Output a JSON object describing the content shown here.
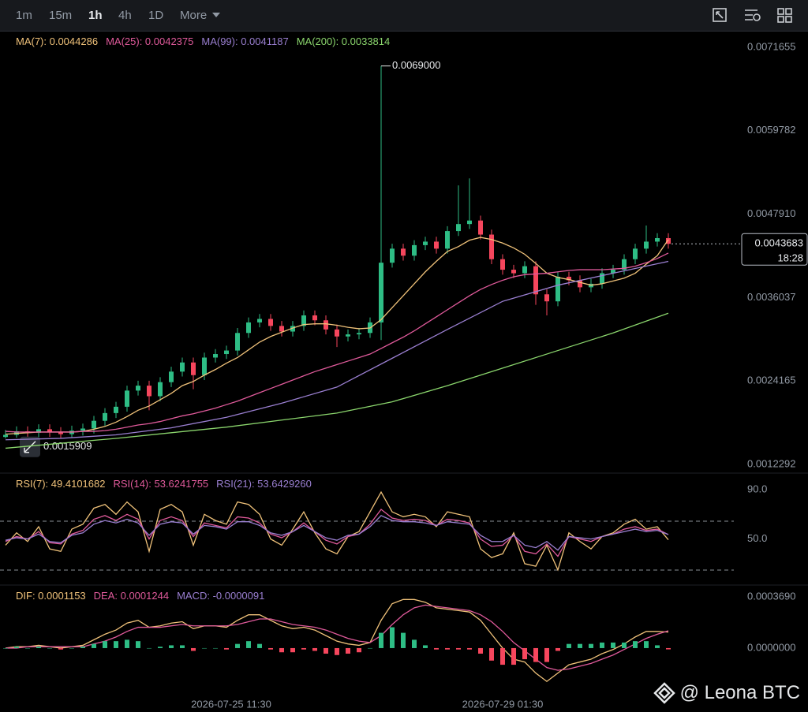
{
  "toolbar": [
    "1m",
    "15m",
    "1h",
    "4h",
    "1D",
    "More"
  ],
  "watermark": "@ Leona BTC",
  "time_labels": [
    "2026-07-25 11:30",
    "2026-07-29 01:30"
  ],
  "chart_data": [
    {
      "type": "candlestick",
      "up_color": "#2ebd85",
      "down_color": "#f6465d",
      "open": [
        0.00162,
        0.00165,
        0.0017,
        0.00168,
        0.00173,
        0.00169,
        0.00166,
        0.00171,
        0.00174,
        0.00185,
        0.00196,
        0.00205,
        0.00228,
        0.00235,
        0.0022,
        0.0024,
        0.00255,
        0.00268,
        0.0025,
        0.00275,
        0.0028,
        0.00285,
        0.0031,
        0.00325,
        0.0033,
        0.0032,
        0.00312,
        0.0032,
        0.00335,
        0.00328,
        0.00315,
        0.00305,
        0.00308,
        0.0031,
        0.00325,
        0.0041,
        0.0043,
        0.0042,
        0.00435,
        0.0044,
        0.0043,
        0.00455,
        0.00465,
        0.0047,
        0.0045,
        0.00415,
        0.004,
        0.00395,
        0.00405,
        0.00365,
        0.00355,
        0.0039,
        0.00385,
        0.00375,
        0.0038,
        0.00395,
        0.004,
        0.00415,
        0.0043,
        0.0044,
        0.00445
      ],
      "high": [
        0.00172,
        0.00177,
        0.00177,
        0.0018,
        0.0018,
        0.00176,
        0.00178,
        0.00181,
        0.00192,
        0.00203,
        0.00212,
        0.00235,
        0.00242,
        0.00242,
        0.00247,
        0.00262,
        0.00275,
        0.00275,
        0.00282,
        0.00287,
        0.00292,
        0.00317,
        0.00332,
        0.00337,
        0.00337,
        0.00327,
        0.00327,
        0.00342,
        0.00342,
        0.00335,
        0.00322,
        0.00315,
        0.00317,
        0.00332,
        0.0069,
        0.00437,
        0.00437,
        0.00442,
        0.00447,
        0.00447,
        0.00462,
        0.0052,
        0.0053,
        0.00477,
        0.00457,
        0.00422,
        0.00407,
        0.00412,
        0.00412,
        0.00372,
        0.00397,
        0.00397,
        0.00392,
        0.00387,
        0.00402,
        0.00407,
        0.00422,
        0.00437,
        0.00463,
        0.00452,
        0.00452
      ],
      "low": [
        0.0016,
        0.00161,
        0.0015909,
        0.00161,
        0.00162,
        0.0016,
        0.00161,
        0.00164,
        0.00167,
        0.00178,
        0.00189,
        0.00198,
        0.00221,
        0.002,
        0.00213,
        0.00233,
        0.00248,
        0.0023,
        0.00243,
        0.00268,
        0.00273,
        0.00278,
        0.00303,
        0.00318,
        0.00313,
        0.00305,
        0.00305,
        0.00313,
        0.00321,
        0.00308,
        0.0029,
        0.00298,
        0.00301,
        0.00303,
        0.003,
        0.00403,
        0.00413,
        0.00413,
        0.00428,
        0.00423,
        0.00423,
        0.00448,
        0.00458,
        0.00443,
        0.00408,
        0.00393,
        0.00388,
        0.00388,
        0.0035,
        0.00335,
        0.00348,
        0.00378,
        0.00368,
        0.00368,
        0.00373,
        0.00388,
        0.00393,
        0.00408,
        0.00423,
        0.00433,
        0.0043
      ],
      "close": [
        0.00165,
        0.0017,
        0.00168,
        0.00173,
        0.00169,
        0.00166,
        0.00171,
        0.00174,
        0.00185,
        0.00196,
        0.00205,
        0.00228,
        0.00235,
        0.0022,
        0.0024,
        0.00255,
        0.00268,
        0.0025,
        0.00275,
        0.0028,
        0.00285,
        0.0031,
        0.00325,
        0.0033,
        0.0032,
        0.00312,
        0.0032,
        0.00335,
        0.00328,
        0.00315,
        0.00305,
        0.00308,
        0.0031,
        0.00325,
        0.0041,
        0.0043,
        0.0042,
        0.00435,
        0.0044,
        0.0043,
        0.00455,
        0.00465,
        0.0047,
        0.0045,
        0.00415,
        0.004,
        0.00395,
        0.00405,
        0.00365,
        0.00355,
        0.0039,
        0.00385,
        0.00375,
        0.0038,
        0.00395,
        0.004,
        0.00415,
        0.0043,
        0.0044,
        0.00445,
        0.0043683
      ],
      "series": [
        {
          "name": "MA(7): 0.0044286",
          "color": "#f0c27a",
          "values": [
            0.00166,
            0.00167,
            0.00168,
            0.00169,
            0.00169,
            0.00169,
            0.00169,
            0.0017,
            0.00173,
            0.00177,
            0.00183,
            0.00191,
            0.002,
            0.00206,
            0.00215,
            0.00224,
            0.00235,
            0.00241,
            0.0025,
            0.00258,
            0.00267,
            0.00275,
            0.00286,
            0.00297,
            0.00305,
            0.00311,
            0.00317,
            0.00322,
            0.00323,
            0.00323,
            0.00321,
            0.00318,
            0.00316,
            0.00317,
            0.00329,
            0.00346,
            0.00363,
            0.0038,
            0.00397,
            0.00412,
            0.00426,
            0.00433,
            0.00442,
            0.00446,
            0.00443,
            0.00438,
            0.00431,
            0.00422,
            0.00409,
            0.00395,
            0.00389,
            0.00386,
            0.00382,
            0.00378,
            0.0038,
            0.00384,
            0.00388,
            0.00395,
            0.00408,
            0.0042,
            0.0044286
          ]
        },
        {
          "name": "MA(25): 0.0042375",
          "color": "#e05a9b",
          "values": [
            0.0017,
            0.00169,
            0.00169,
            0.00169,
            0.00169,
            0.00169,
            0.00169,
            0.0017,
            0.0017,
            0.00171,
            0.00173,
            0.00176,
            0.00179,
            0.00181,
            0.00184,
            0.00188,
            0.00192,
            0.00195,
            0.00199,
            0.00203,
            0.00208,
            0.00213,
            0.00219,
            0.00225,
            0.00231,
            0.00237,
            0.00243,
            0.00249,
            0.00255,
            0.0026,
            0.00265,
            0.0027,
            0.00275,
            0.0028,
            0.00288,
            0.00296,
            0.00304,
            0.00313,
            0.00323,
            0.00333,
            0.00343,
            0.00353,
            0.00363,
            0.00372,
            0.00379,
            0.00385,
            0.0039,
            0.00393,
            0.00394,
            0.00395,
            0.00397,
            0.00399,
            0.004,
            0.004,
            0.004,
            0.00401,
            0.00402,
            0.00405,
            0.0041,
            0.00416,
            0.0042375
          ]
        },
        {
          "name": "MA(99): 0.0041187",
          "color": "#9a7fd1",
          "x": [
            0,
            5,
            10,
            15,
            20,
            25,
            30,
            35,
            40,
            45,
            50,
            55,
            60
          ],
          "values": [
            0.00158,
            0.0016,
            0.00165,
            0.00175,
            0.0019,
            0.0021,
            0.00233,
            0.00274,
            0.00315,
            0.00355,
            0.00378,
            0.00395,
            0.0041187
          ]
        },
        {
          "name": "MA(200): 0.0033814",
          "color": "#8bd66d",
          "x": [
            0,
            5,
            10,
            15,
            20,
            25,
            30,
            35,
            40,
            45,
            50,
            55,
            60
          ],
          "values": [
            0.00146,
            0.00153,
            0.0016,
            0.00168,
            0.00176,
            0.00186,
            0.00196,
            0.00212,
            0.00235,
            0.0026,
            0.00285,
            0.0031,
            0.0033814
          ]
        }
      ],
      "annotations": [
        "0.0069000",
        "0.0015909"
      ],
      "countdown": "18:28",
      "ylim": [
        0.0011058,
        0.0073899
      ],
      "yticks": [
        0.0071655,
        0.0059782,
        {
          "value": 0.004791,
          "label": "0.0047910"
        },
        0.0036037,
        0.0024165,
        0.0012292
      ]
    },
    {
      "type": "line",
      "series": [
        {
          "name": "RSI(7): 49.4101682",
          "color": "#f0c27a",
          "values": [
            45,
            55,
            48,
            60,
            42,
            40,
            58,
            62,
            75,
            78,
            70,
            80,
            72,
            40,
            74,
            78,
            72,
            45,
            70,
            65,
            62,
            80,
            78,
            70,
            50,
            45,
            58,
            72,
            55,
            42,
            38,
            52,
            56,
            72,
            88,
            72,
            68,
            70,
            68,
            60,
            72,
            70,
            68,
            42,
            35,
            38,
            55,
            30,
            28,
            45,
            25,
            55,
            48,
            42,
            52,
            55,
            62,
            66,
            58,
            60,
            49.4101682
          ]
        },
        {
          "name": "RSI(14): 53.6241755",
          "color": "#e05a9b",
          "values": [
            48,
            52,
            50,
            56,
            47,
            46,
            54,
            57,
            66,
            69,
            65,
            70,
            66,
            50,
            65,
            68,
            65,
            52,
            63,
            61,
            59,
            68,
            67,
            63,
            54,
            51,
            56,
            63,
            56,
            49,
            46,
            52,
            54,
            62,
            74,
            67,
            65,
            66,
            65,
            61,
            66,
            65,
            63,
            50,
            44,
            45,
            53,
            40,
            38,
            46,
            36,
            52,
            50,
            48,
            52,
            54,
            58,
            60,
            57,
            58,
            53.6241755
          ]
        },
        {
          "name": "RSI(21): 53.6429260",
          "color": "#9a7fd1",
          "values": [
            49,
            51,
            50,
            54,
            48,
            47,
            53,
            55,
            62,
            65,
            63,
            66,
            63,
            53,
            62,
            64,
            63,
            54,
            61,
            60,
            58,
            64,
            64,
            61,
            55,
            53,
            56,
            61,
            56,
            51,
            49,
            53,
            54,
            60,
            69,
            65,
            64,
            64,
            63,
            61,
            64,
            63,
            62,
            53,
            48,
            48,
            53,
            45,
            43,
            48,
            41,
            52,
            51,
            50,
            52,
            54,
            56,
            58,
            56,
            57,
            53.642926
          ]
        }
      ],
      "ylim": [
        14,
        97
      ],
      "yticks": [
        {
          "value": 90,
          "label": "90.0"
        },
        {
          "value": 50,
          "label": "50.0"
        }
      ]
    },
    {
      "type": "line",
      "up_color": "#2ebd85",
      "down_color": "#f6465d",
      "series": [
        {
          "name": "DIF: 0.0001153",
          "color": "#f0c27a",
          "values": [
            0,
            1e-05,
            1e-05,
            2e-05,
            1e-05,
            0,
            1e-05,
            2e-05,
            6e-05,
            0.0001,
            0.00013,
            0.00018,
            0.0002,
            0.00015,
            0.00016,
            0.00018,
            0.00019,
            0.00014,
            0.00016,
            0.00016,
            0.00015,
            0.0002,
            0.00024,
            0.00024,
            0.0002,
            0.00016,
            0.00014,
            0.00015,
            0.00013,
            9e-05,
            5e-05,
            3e-05,
            2e-05,
            4e-05,
            0.0002,
            0.00032,
            0.00035,
            0.00035,
            0.00033,
            0.00029,
            0.00028,
            0.00027,
            0.00026,
            0.0002,
            0.0001,
            0,
            -8e-05,
            -0.0001,
            -0.00018,
            -0.00024,
            -0.00018,
            -0.00012,
            -0.0001,
            -8e-05,
            -4e-05,
            -1e-05,
            3e-05,
            8e-05,
            0.00012,
            0.00012,
            0.0001153
          ]
        },
        {
          "name": "DEA: 0.0001244",
          "color": "#e05a9b",
          "values": [
            0,
            0,
            1e-05,
            1e-05,
            1e-05,
            1e-05,
            1e-05,
            1e-05,
            3e-05,
            5e-05,
            8e-05,
            0.00012,
            0.00015,
            0.00015,
            0.00015,
            0.00016,
            0.00017,
            0.00016,
            0.00016,
            0.00016,
            0.00016,
            0.00017,
            0.00019,
            0.00021,
            0.00021,
            0.00019,
            0.00017,
            0.00016,
            0.00015,
            0.00013,
            0.0001,
            7e-05,
            5e-05,
            4e-05,
            9e-05,
            0.00017,
            0.00024,
            0.00029,
            0.00031,
            0.0003,
            0.00029,
            0.00028,
            0.00027,
            0.00024,
            0.00019,
            0.00012,
            4e-05,
            -2e-05,
            -8e-05,
            -0.00014,
            -0.00016,
            -0.00015,
            -0.00013,
            -0.00011,
            -8e-05,
            -5e-05,
            -1e-05,
            3e-05,
            7e-05,
            0.0001,
            0.0001244
          ]
        },
        {
          "name": "MACD: -0.0000091",
          "color": "#9a7fd1",
          "style": "bar",
          "values": [
            0,
            1e-05,
            0,
            1e-05,
            0,
            -1e-05,
            0,
            1e-05,
            3e-05,
            5e-05,
            5e-05,
            6e-05,
            5e-05,
            0,
            1e-05,
            2e-05,
            2e-05,
            -2e-05,
            0,
            0,
            -1e-05,
            3e-05,
            5e-05,
            3e-05,
            -1e-05,
            -3e-05,
            -3e-05,
            -1e-05,
            -2e-05,
            -4e-05,
            -5e-05,
            -4e-05,
            -3e-05,
            0,
            0.00011,
            0.00015,
            0.00011,
            6e-05,
            2e-05,
            -1e-05,
            -1e-05,
            -1e-05,
            -1e-05,
            -4e-05,
            -9e-05,
            -0.00012,
            -0.00012,
            -8e-05,
            -0.0001,
            -0.0001,
            -2e-05,
            3e-05,
            3e-05,
            3e-05,
            4e-05,
            4e-05,
            4e-05,
            5e-05,
            5e-05,
            2e-05,
            -9.1e-06
          ]
        }
      ],
      "ylim": [
        -0.000358,
        0.000437
      ],
      "yticks": [
        {
          "value": 0.000369,
          "label": "0.0003690"
        },
        {
          "value": 0,
          "label": "0.0000000"
        }
      ]
    }
  ]
}
